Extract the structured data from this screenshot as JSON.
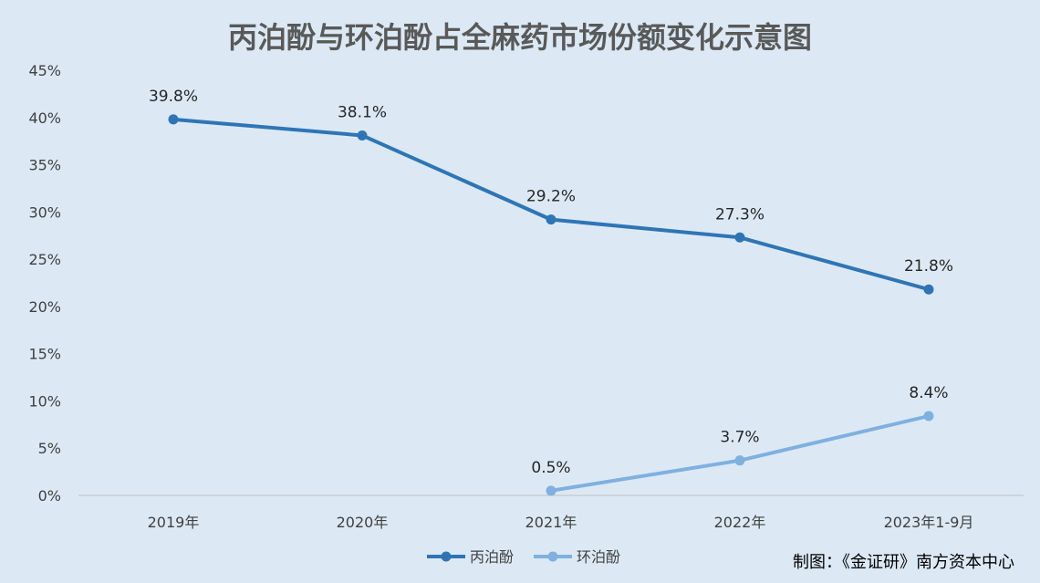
{
  "chart_data": {
    "type": "line",
    "title": "丙泊酚与环泊酚占全麻药市场份额变化示意图",
    "categories": [
      "2019年",
      "2020年",
      "2021年",
      "2022年",
      "2023年1-9月"
    ],
    "yticks": [
      "0%",
      "5%",
      "10%",
      "15%",
      "20%",
      "25%",
      "30%",
      "35%",
      "40%",
      "45%"
    ],
    "ylim": [
      0,
      45
    ],
    "series": [
      {
        "name": "丙泊酚",
        "color": "#2e75b6",
        "values": [
          39.8,
          38.1,
          29.2,
          27.3,
          21.8
        ],
        "labels": [
          "39.8%",
          "38.1%",
          "29.2%",
          "27.3%",
          "21.8%"
        ]
      },
      {
        "name": "环泊酚",
        "color": "#7fb0e0",
        "values": [
          null,
          null,
          0.5,
          3.7,
          8.4
        ],
        "labels": [
          "",
          "",
          "0.5%",
          "3.7%",
          "8.4%"
        ]
      }
    ],
    "legend_position": "bottom",
    "grid": false
  },
  "source_note": "制图：《金证研》南方资本中心"
}
